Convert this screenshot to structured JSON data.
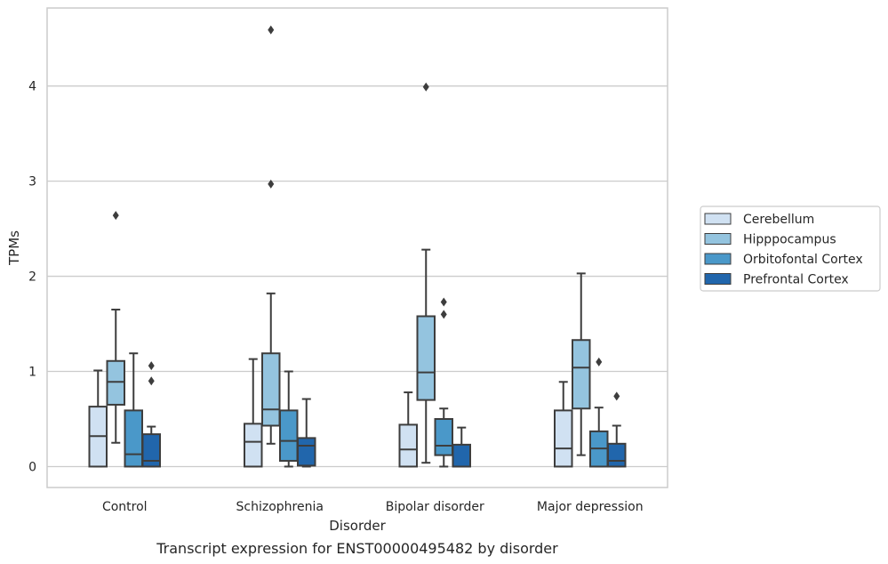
{
  "chart_data": {
    "type": "box",
    "caption": "Transcript expression for ENST00000495482 by disorder",
    "xlabel": "Disorder",
    "ylabel": "TPMs",
    "ylim": [
      -0.22,
      4.82
    ],
    "yticks": [
      0,
      1,
      2,
      3,
      4
    ],
    "grid": "horizontal",
    "legend_position": "right",
    "categories": [
      "Control",
      "Schizophrenia",
      "Bipolar disorder",
      "Major depression"
    ],
    "series": [
      {
        "name": "Cerebellum",
        "color": "#d0e1f2",
        "boxes": [
          {
            "whislo": 0.0,
            "q1": 0.0,
            "med": 0.32,
            "q3": 0.63,
            "whishi": 1.01,
            "fliers": []
          },
          {
            "whislo": 0.0,
            "q1": 0.0,
            "med": 0.26,
            "q3": 0.45,
            "whishi": 1.13,
            "fliers": []
          },
          {
            "whislo": 0.0,
            "q1": 0.0,
            "med": 0.18,
            "q3": 0.44,
            "whishi": 0.78,
            "fliers": []
          },
          {
            "whislo": 0.0,
            "q1": 0.0,
            "med": 0.19,
            "q3": 0.59,
            "whishi": 0.89,
            "fliers": []
          }
        ]
      },
      {
        "name": "Hipppocampus",
        "color": "#94c4df",
        "boxes": [
          {
            "whislo": 0.25,
            "q1": 0.65,
            "med": 0.89,
            "q3": 1.11,
            "whishi": 1.65,
            "fliers": [
              2.64
            ]
          },
          {
            "whislo": 0.24,
            "q1": 0.43,
            "med": 0.6,
            "q3": 1.19,
            "whishi": 1.82,
            "fliers": [
              2.97,
              4.59
            ]
          },
          {
            "whislo": 0.04,
            "q1": 0.7,
            "med": 0.99,
            "q3": 1.58,
            "whishi": 2.28,
            "fliers": [
              3.99
            ]
          },
          {
            "whislo": 0.12,
            "q1": 0.61,
            "med": 1.04,
            "q3": 1.33,
            "whishi": 2.03,
            "fliers": []
          }
        ]
      },
      {
        "name": "Orbitofontal Cortex",
        "color": "#4a98c9",
        "boxes": [
          {
            "whislo": 0.0,
            "q1": 0.0,
            "med": 0.13,
            "q3": 0.59,
            "whishi": 1.19,
            "fliers": []
          },
          {
            "whislo": 0.0,
            "q1": 0.06,
            "med": 0.27,
            "q3": 0.59,
            "whishi": 1.0,
            "fliers": []
          },
          {
            "whislo": 0.0,
            "q1": 0.12,
            "med": 0.22,
            "q3": 0.5,
            "whishi": 0.61,
            "fliers": [
              1.6,
              1.73
            ]
          },
          {
            "whislo": 0.0,
            "q1": 0.0,
            "med": 0.19,
            "q3": 0.37,
            "whishi": 0.62,
            "fliers": [
              1.1
            ]
          }
        ]
      },
      {
        "name": "Prefrontal Cortex",
        "color": "#2166ac",
        "boxes": [
          {
            "whislo": 0.0,
            "q1": 0.0,
            "med": 0.06,
            "q3": 0.34,
            "whishi": 0.42,
            "fliers": [
              0.9,
              1.06
            ]
          },
          {
            "whislo": 0.0,
            "q1": 0.01,
            "med": 0.22,
            "q3": 0.3,
            "whishi": 0.71,
            "fliers": []
          },
          {
            "whislo": 0.0,
            "q1": 0.0,
            "med": 0.0,
            "q3": 0.23,
            "whishi": 0.41,
            "fliers": []
          },
          {
            "whislo": 0.0,
            "q1": 0.0,
            "med": 0.06,
            "q3": 0.24,
            "whishi": 0.43,
            "fliers": [
              0.74
            ]
          }
        ]
      }
    ]
  }
}
